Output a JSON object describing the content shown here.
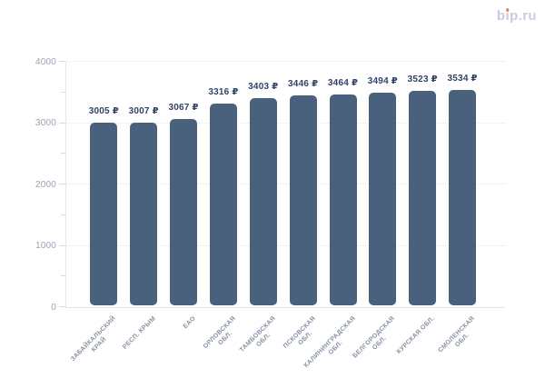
{
  "page": {
    "background": "#FFFFFF"
  },
  "logo": {
    "full_text": "bip.ru",
    "part_b": "b",
    "part_i": "ı",
    "part_rest": "p.ru",
    "text_color": "#C7CDDE",
    "dot_color": "#EF7A5B"
  },
  "chart_data": {
    "type": "bar",
    "title": "",
    "xlabel": "",
    "ylabel": "",
    "legend_position": "none",
    "grid": "horizontal-dotted-major",
    "categories": [
      "ЗАБАЙКАЛЬСКИЙ\nКРАЙ",
      "РЕСП. КРЫМ",
      "ЕАО",
      "ОРЛОВСКАЯ\nОБЛ.",
      "ТАМБОВСКАЯ\nОБЛ.",
      "ПСКОВСКАЯ\nОБЛ.",
      "КАЛИНИНГРАДСКАЯ\nОБЛ.",
      "БЕЛГОРОДСКАЯ\nОБЛ.",
      "КУРСКАЯ ОБЛ.",
      "СМОЛЕНСКАЯ\nОБЛ."
    ],
    "values": [
      3005,
      3007,
      3067,
      3316,
      3403,
      3446,
      3464,
      3494,
      3523,
      3534
    ],
    "value_labels": [
      "3005 ₽",
      "3007 ₽",
      "3067 ₽",
      "3316 ₽",
      "3403 ₽",
      "3446 ₽",
      "3464 ₽",
      "3494 ₽",
      "3523 ₽",
      "3534 ₽"
    ],
    "currency": "₽",
    "ylim": [
      0,
      4000
    ],
    "yticks": [
      0,
      1000,
      2000,
      3000,
      4000
    ],
    "ytick_labels": [
      "0",
      "1000",
      "2000",
      "3000",
      "4000"
    ],
    "minor_yticks": [
      500,
      1500,
      2500,
      3500
    ],
    "colors": {
      "bar": "#4A617E",
      "value_label": "#31436A",
      "y_label": "#9AA2B3",
      "x_label": "#8590A5",
      "grid": "#E4E7EC",
      "axis_line": "#E2E5EA",
      "tick": "#D8DDE5"
    }
  }
}
